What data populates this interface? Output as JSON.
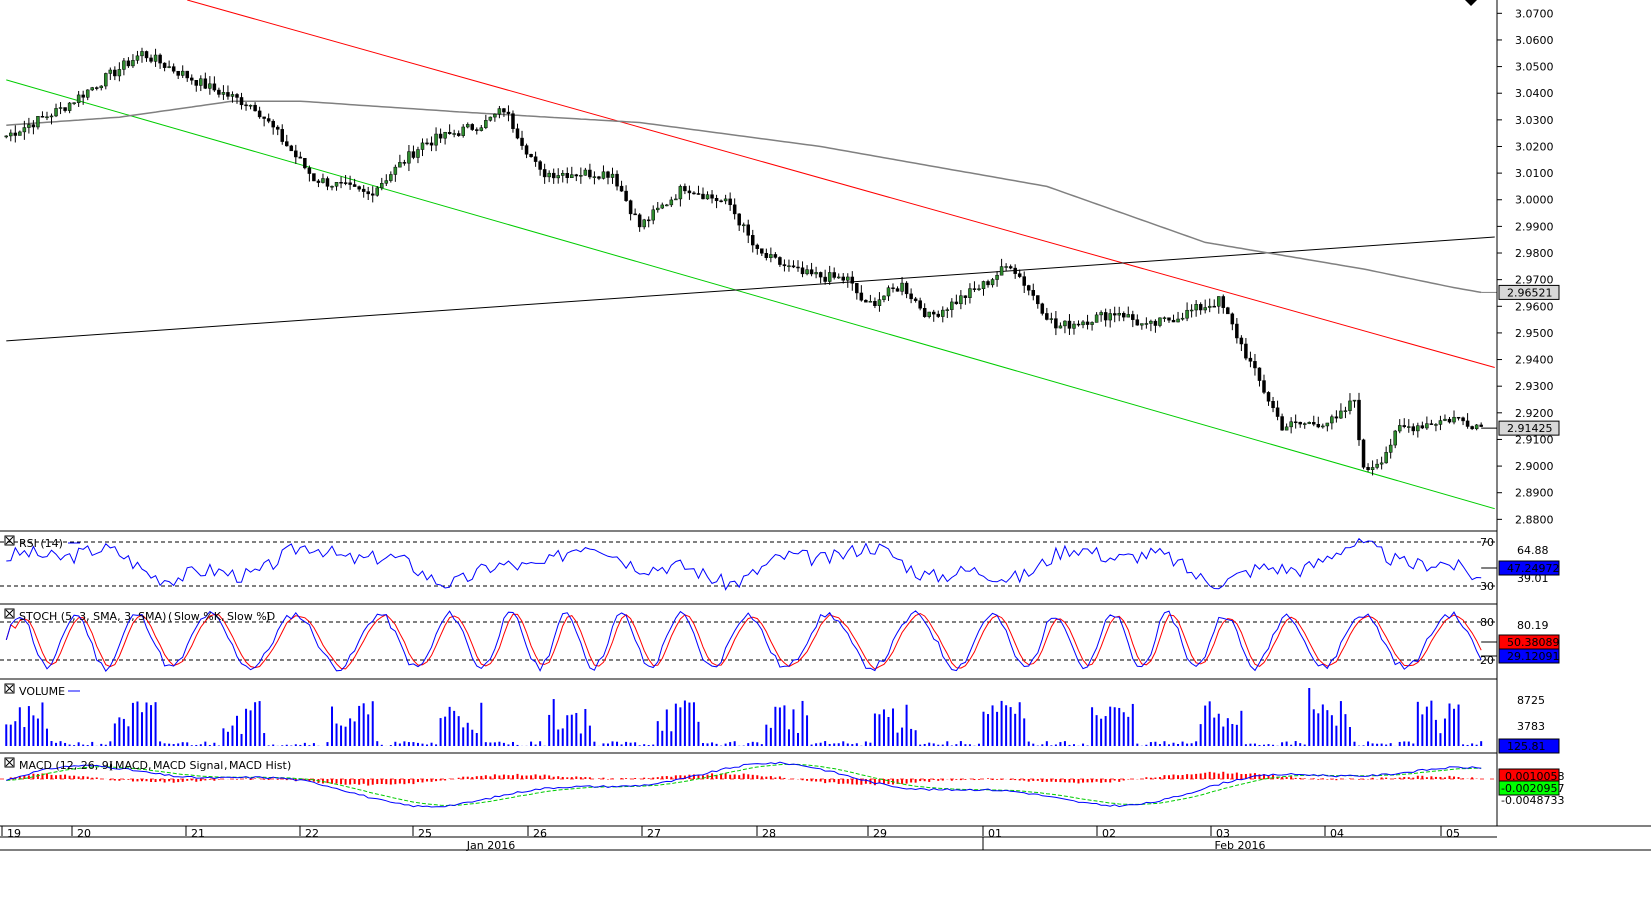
{
  "chart_data": {
    "type": "candlestick",
    "symbol_panel": {
      "y_ticks": [
        "3.0700",
        "3.0600",
        "3.0500",
        "3.0400",
        "3.0300",
        "3.0200",
        "3.0100",
        "3.0000",
        "2.9900",
        "2.9800",
        "2.9700",
        "2.9600",
        "2.9500",
        "2.9400",
        "2.9300",
        "2.9200",
        "2.9100",
        "2.9000",
        "2.8900",
        "2.8800"
      ],
      "ylim": [
        2.876,
        3.075
      ],
      "last_price_label": "2.91425",
      "last_price": 2.91425,
      "sma_label": "2.96521",
      "sma_value": 2.96521,
      "anchors": [
        [
          0,
          3.024
        ],
        [
          12,
          3.034
        ],
        [
          30,
          3.055
        ],
        [
          45,
          3.042
        ],
        [
          55,
          3.035
        ],
        [
          68,
          3.008
        ],
        [
          80,
          3.002
        ],
        [
          92,
          3.021
        ],
        [
          106,
          3.029
        ],
        [
          110,
          3.034
        ],
        [
          118,
          3.01
        ],
        [
          134,
          3.01
        ],
        [
          140,
          2.99
        ],
        [
          150,
          3.005
        ],
        [
          160,
          2.998
        ],
        [
          166,
          2.98
        ],
        [
          176,
          2.972
        ],
        [
          186,
          2.97
        ],
        [
          190,
          2.96
        ],
        [
          198,
          2.968
        ],
        [
          204,
          2.956
        ],
        [
          216,
          2.968
        ],
        [
          222,
          2.976
        ],
        [
          232,
          2.952
        ],
        [
          246,
          2.958
        ],
        [
          252,
          2.952
        ],
        [
          268,
          2.962
        ],
        [
          270,
          2.956
        ],
        [
          276,
          2.935
        ],
        [
          282,
          2.915
        ],
        [
          294,
          2.917
        ],
        [
          298,
          2.925
        ],
        [
          300,
          2.898
        ],
        [
          304,
          2.903
        ],
        [
          308,
          2.914
        ],
        [
          320,
          2.918
        ],
        [
          326,
          2.915
        ]
      ],
      "color_up": "#2e8b2e",
      "color_down": "#000000"
    },
    "rsi": {
      "title": "RSI (14)",
      "levels": [
        "70",
        "30"
      ],
      "right_labels": [
        "64.88",
        "39.01"
      ],
      "last_label": "47.24972",
      "ylim": [
        0,
        100
      ]
    },
    "stoch": {
      "title": "STOCH (5, 3, SMA, 3, SMA)",
      "legend": [
        "Slow %K",
        "Slow %D"
      ],
      "levels": [
        "80",
        "20"
      ],
      "right_label": "80.19",
      "last_d_label": "50.38089",
      "last_k_label": "29.12091"
    },
    "volume": {
      "title": "VOLUME",
      "right_labels": [
        "8725",
        "3783"
      ],
      "last_label": "125.81"
    },
    "macd": {
      "title": "MACD (12, 26, 9)",
      "legend": [
        "MACD",
        "MACD Signal",
        "MACD Hist"
      ],
      "labels": [
        "0.0010058",
        "-0.0020957",
        "-0.0048733"
      ]
    },
    "x_day_labels": [
      "19",
      "20",
      "21",
      "22",
      "25",
      "26",
      "27",
      "28",
      "29",
      "01",
      "02",
      "03",
      "04",
      "05"
    ],
    "x_month_labels": [
      "Jan 2016",
      "Feb 2016"
    ],
    "colors": {
      "macd": "#0000ff",
      "signal": "#00cc00",
      "hist": "#ff0000",
      "rsi": "#0000ff",
      "volume": "#0000ff",
      "channel_upper": "#ff0000",
      "channel_lower": "#00cc00",
      "sma": "#808080",
      "trend": "#000000"
    }
  }
}
